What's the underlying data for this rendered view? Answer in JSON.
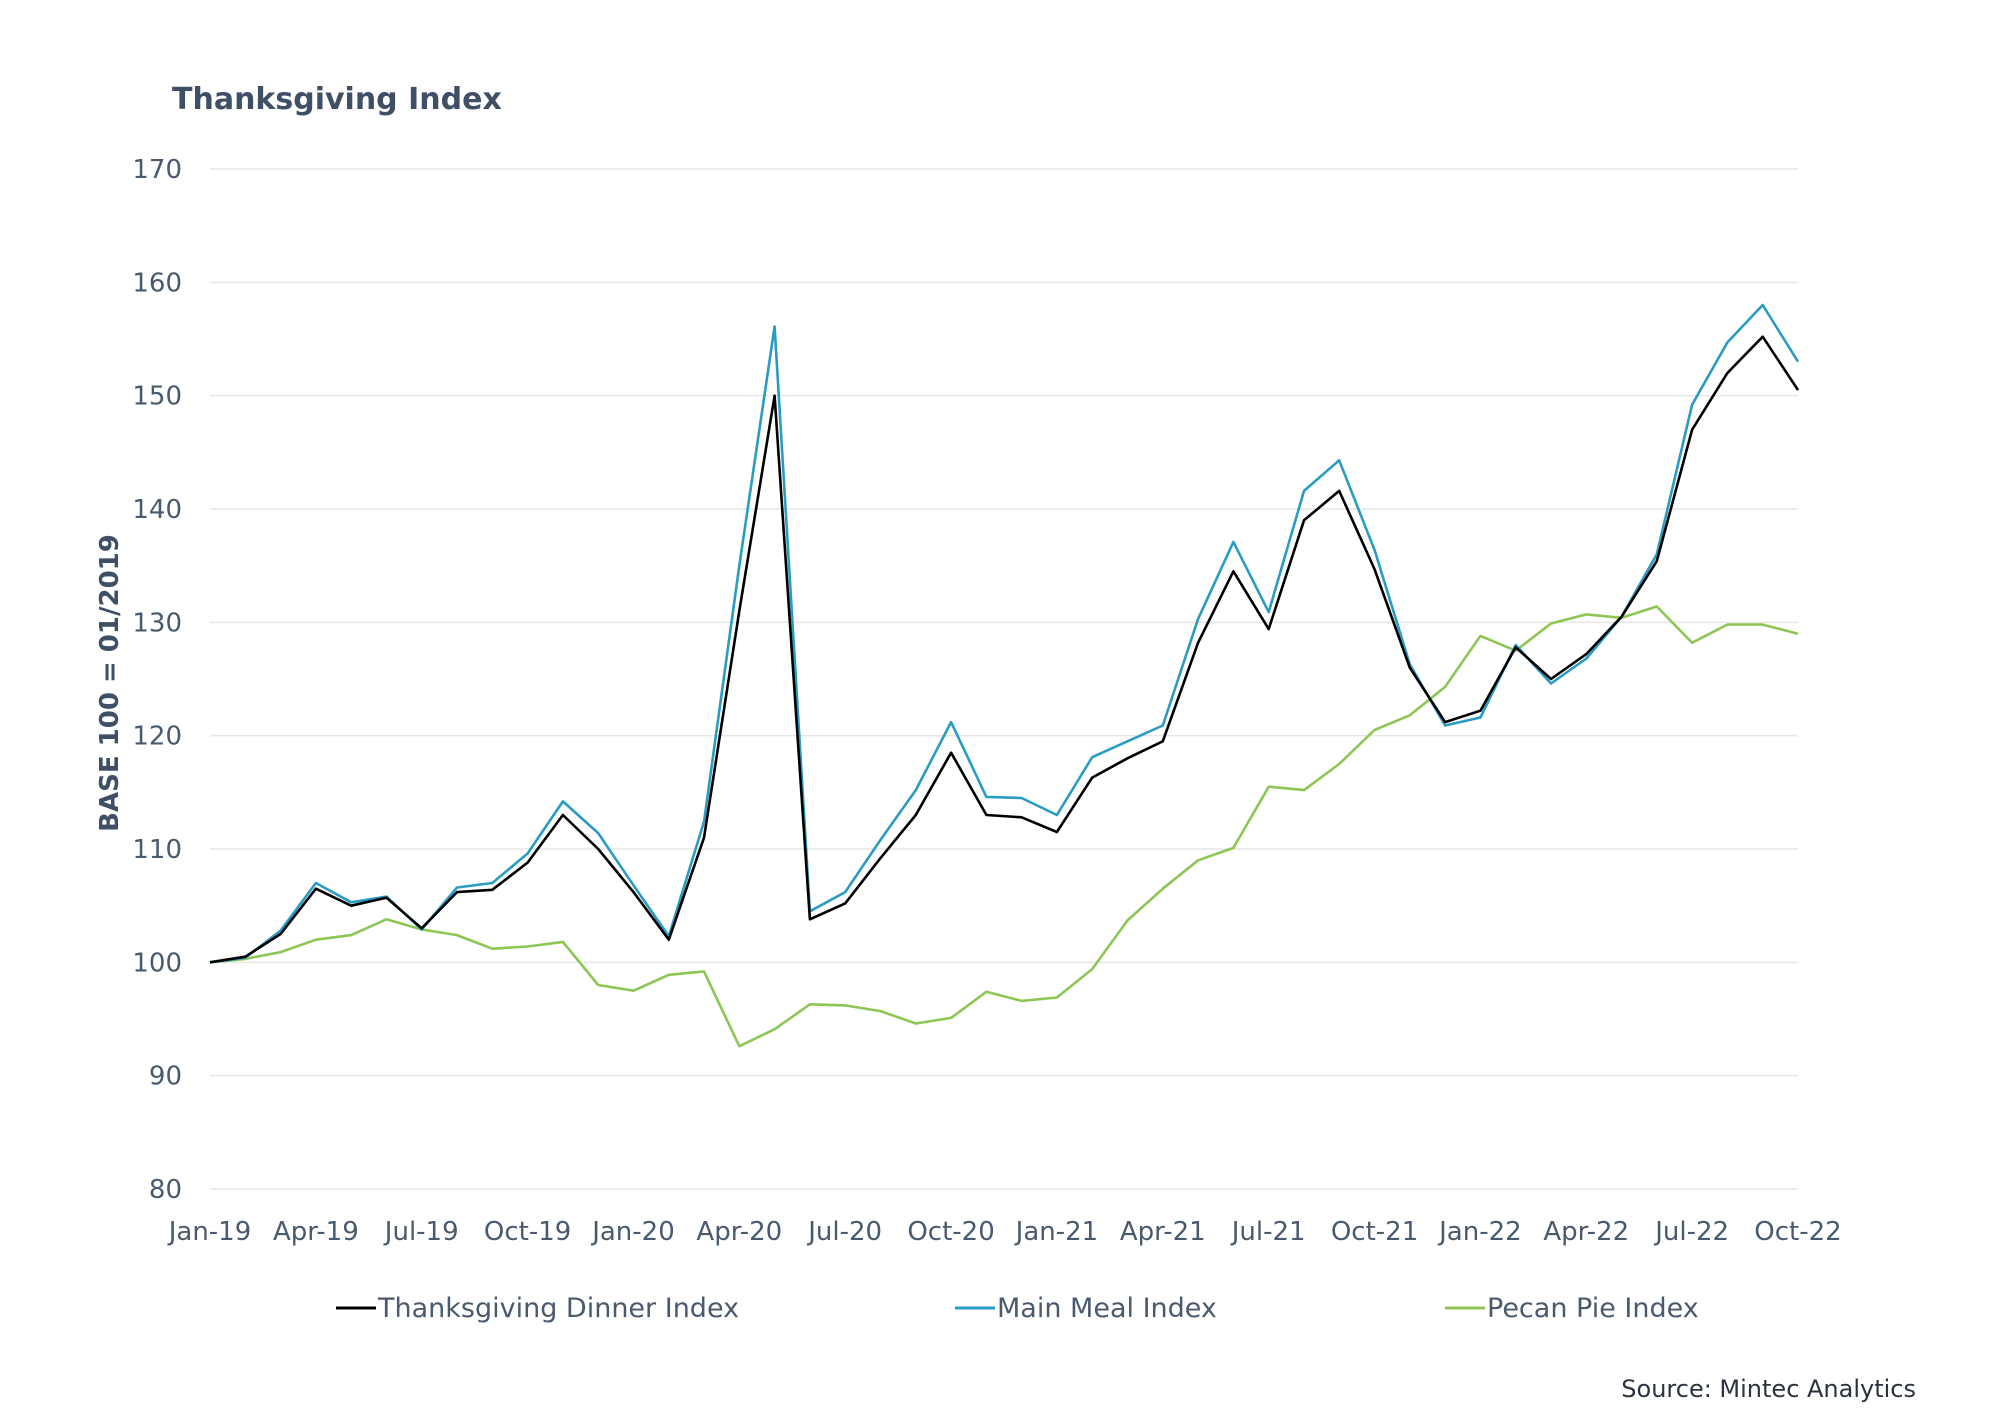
{
  "chart_data": {
    "type": "line",
    "title": "Thanksgiving Index",
    "ylabel": "BASE 100 = 01/2019",
    "xlabel": "",
    "ylim": [
      80,
      170
    ],
    "yticks": [
      80,
      90,
      100,
      110,
      120,
      130,
      140,
      150,
      160,
      170
    ],
    "xtick_labels": [
      "Jan-19",
      "Apr-19",
      "Jul-19",
      "Oct-19",
      "Jan-20",
      "Apr-20",
      "Jul-20",
      "Oct-20",
      "Jan-21",
      "Apr-21",
      "Jul-21",
      "Oct-21",
      "Jan-22",
      "Apr-22",
      "Jul-22",
      "Oct-22"
    ],
    "x": [
      "Jan-19",
      "Feb-19",
      "Mar-19",
      "Apr-19",
      "May-19",
      "Jun-19",
      "Jul-19",
      "Aug-19",
      "Sep-19",
      "Oct-19",
      "Nov-19",
      "Dec-19",
      "Jan-20",
      "Feb-20",
      "Mar-20",
      "Apr-20",
      "May-20",
      "Jun-20",
      "Jul-20",
      "Aug-20",
      "Sep-20",
      "Oct-20",
      "Nov-20",
      "Dec-20",
      "Jan-21",
      "Feb-21",
      "Mar-21",
      "Apr-21",
      "May-21",
      "Jun-21",
      "Jul-21",
      "Aug-21",
      "Sep-21",
      "Oct-21",
      "Nov-21",
      "Dec-21",
      "Jan-22",
      "Feb-22",
      "Mar-22",
      "Apr-22",
      "May-22",
      "Jun-22",
      "Jul-22",
      "Aug-22",
      "Sep-22",
      "Oct-22"
    ],
    "grid": true,
    "legend_position": "bottom",
    "series": [
      {
        "name": "Thanksgiving Dinner Index",
        "color": "#000000",
        "values": [
          100,
          100.5,
          102.5,
          106.5,
          105,
          105.7,
          103,
          106.2,
          106.4,
          108.8,
          113,
          110,
          106.2,
          102,
          111,
          131,
          150,
          103.8,
          105.2,
          109.2,
          113,
          118.5,
          113,
          112.8,
          111.5,
          116.3,
          118,
          119.5,
          128.2,
          134.5,
          129.4,
          139,
          141.6,
          134.7,
          126,
          121.2,
          122.2,
          127.8,
          125,
          127.2,
          130.5,
          135.4,
          147,
          152,
          155.2,
          150.5
        ]
      },
      {
        "name": "Main Meal Index",
        "color": "#2a9cc4",
        "values": [
          100,
          100.4,
          102.8,
          107,
          105.3,
          105.8,
          102.9,
          106.6,
          107,
          109.6,
          114.2,
          111.4,
          106.8,
          102.3,
          112.4,
          135,
          156.1,
          104.5,
          106.2,
          110.8,
          115.2,
          121.2,
          114.6,
          114.5,
          113,
          118.1,
          119.5,
          120.9,
          130.3,
          137.1,
          130.9,
          141.6,
          144.3,
          136.4,
          126.3,
          120.9,
          121.6,
          128,
          124.6,
          126.8,
          130.5,
          136,
          149.2,
          154.7,
          158,
          153
        ]
      },
      {
        "name": "Pecan Pie Index",
        "color": "#8dc654",
        "values": [
          100,
          100.3,
          100.9,
          102,
          102.4,
          103.8,
          102.9,
          102.4,
          101.2,
          101.4,
          101.8,
          98,
          97.5,
          98.9,
          99.2,
          92.6,
          94.1,
          96.3,
          96.2,
          95.7,
          94.6,
          95.1,
          97.4,
          96.6,
          96.9,
          99.4,
          103.7,
          106.5,
          109,
          110.1,
          115.5,
          115.2,
          117.5,
          120.5,
          121.8,
          124.3,
          128.8,
          127.5,
          129.9,
          130.7,
          130.4,
          131.4,
          128.2,
          129.8,
          129.8,
          129
        ]
      }
    ],
    "source": "Source: Mintec Analytics"
  }
}
